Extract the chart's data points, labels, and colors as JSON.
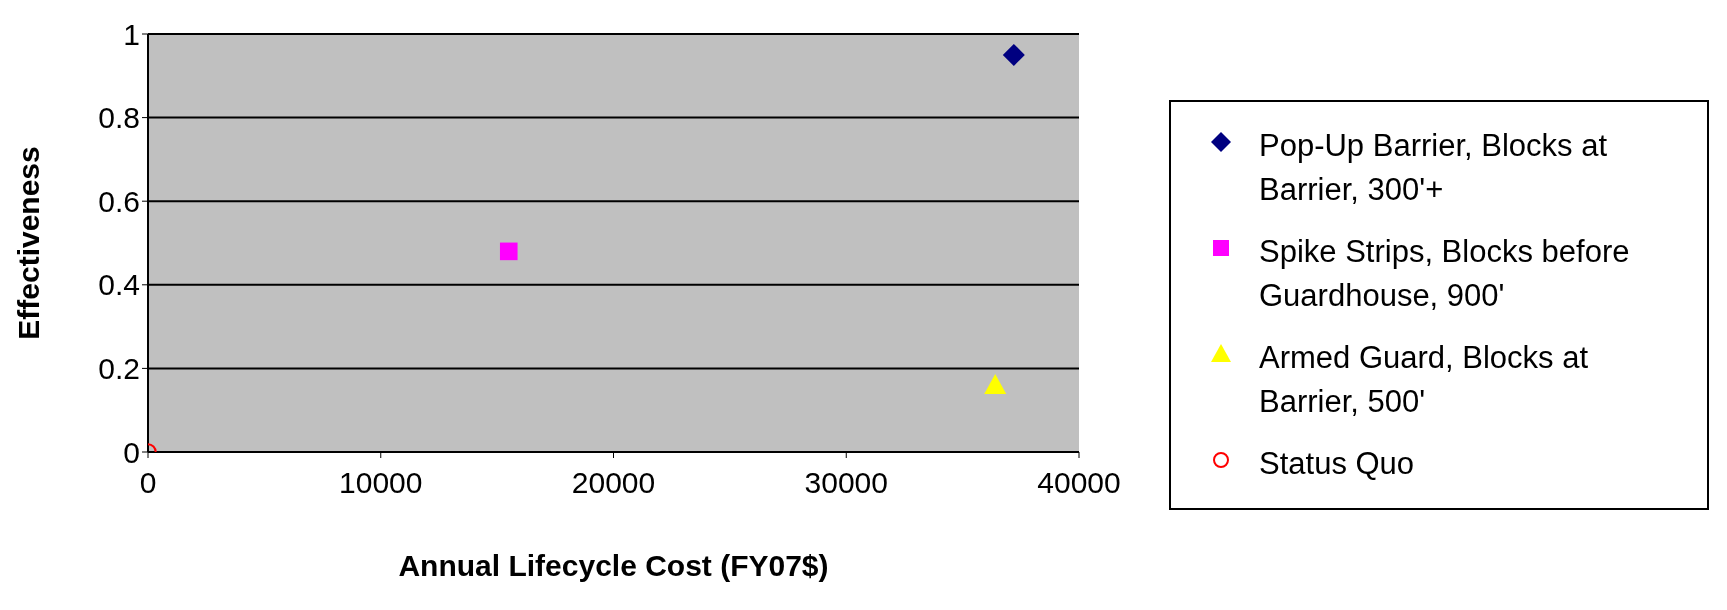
{
  "chart_data": {
    "type": "scatter",
    "xlabel": "Annual Lifecycle Cost (FY07$)",
    "ylabel": "Effectiveness",
    "xlim": [
      0,
      40000
    ],
    "xticks": [
      0,
      10000,
      20000,
      30000,
      40000
    ],
    "ylim": [
      0,
      1
    ],
    "yticks": [
      0,
      0.2,
      0.4,
      0.6,
      0.8,
      1
    ],
    "grid": "y",
    "legend": "right",
    "series": [
      {
        "name": "Pop-Up Barrier, Blocks at Barrier, 300'+",
        "color": "#000080",
        "marker": "diamond",
        "x": [
          37200
        ],
        "values": [
          0.95
        ]
      },
      {
        "name": "Spike Strips, Blocks before Guardhouse, 900'",
        "color": "#ff00ff",
        "marker": "square",
        "x": [
          15500
        ],
        "values": [
          0.48
        ]
      },
      {
        "name": "Armed Guard, Blocks at Barrier, 500'",
        "color": "#ffff00",
        "marker": "triangle",
        "x": [
          36400
        ],
        "values": [
          0.16
        ]
      },
      {
        "name": "Status Quo",
        "color": "#ff0000",
        "marker": "open-circle",
        "x": [
          0
        ],
        "values": [
          0
        ]
      }
    ]
  }
}
